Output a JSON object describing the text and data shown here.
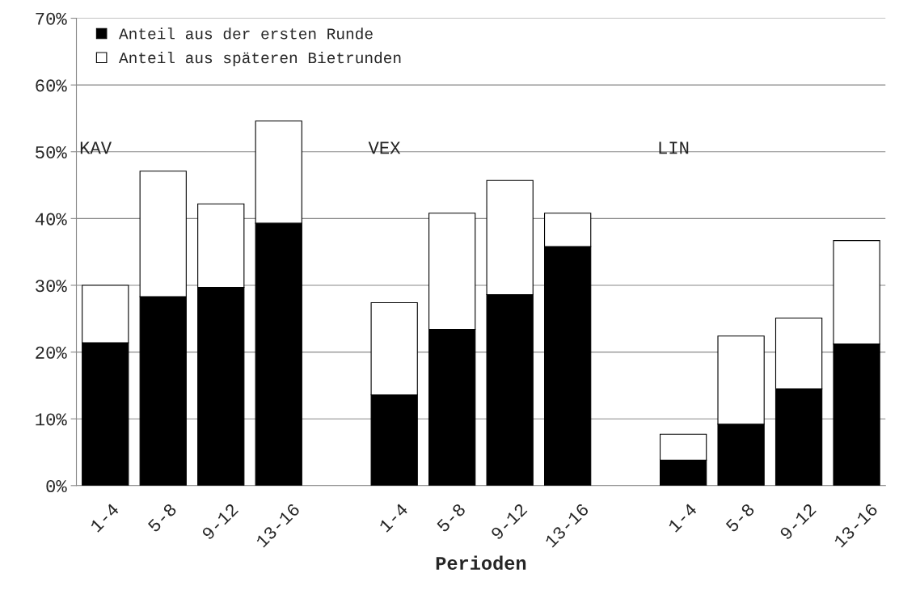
{
  "chart_data": {
    "type": "bar",
    "stacked": true,
    "xlabel": "Perioden",
    "categories": [
      "1-4",
      "5-8",
      "9-12",
      "13-16",
      null,
      "1-4",
      "5-8",
      "9-12",
      "13-16",
      null,
      "1-4",
      "5-8",
      "9-12",
      "13-16"
    ],
    "series": [
      {
        "name": "Anteil aus der ersten Runde",
        "color": "#000000",
        "values": [
          21.4,
          28.3,
          29.7,
          39.3,
          null,
          13.6,
          23.4,
          28.6,
          35.8,
          null,
          3.8,
          9.2,
          14.5,
          21.2
        ]
      },
      {
        "name": "Anteil aus späteren Bietrunden",
        "color": "#ffffff",
        "values": [
          8.6,
          18.8,
          12.5,
          15.3,
          null,
          13.8,
          17.4,
          17.1,
          5.0,
          null,
          3.9,
          13.2,
          10.6,
          15.5
        ]
      }
    ],
    "annotations": [
      "KAV",
      "VEX",
      "LIN"
    ],
    "ylim": [
      0,
      70
    ],
    "yticks": [
      {
        "value": 0,
        "label": "0%"
      },
      {
        "value": 10,
        "label": "10%"
      },
      {
        "value": 20,
        "label": "20%"
      },
      {
        "value": 30,
        "label": "30%"
      },
      {
        "value": 40,
        "label": "40%"
      },
      {
        "value": 50,
        "label": "50%"
      },
      {
        "value": 60,
        "label": "60%"
      },
      {
        "value": 70,
        "label": "70%"
      }
    ],
    "grid": "y",
    "legend": "top left",
    "marker": "square"
  }
}
